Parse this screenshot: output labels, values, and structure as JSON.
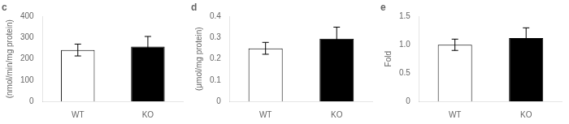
{
  "chart_data": [
    {
      "type": "bar",
      "title": "c",
      "ylabel": "(nmol/min/mg protein)",
      "categories": [
        "WT",
        "KO"
      ],
      "values": [
        242,
        258
      ],
      "errors": [
        28,
        48
      ],
      "colors": [
        "white",
        "black"
      ],
      "ylim": [
        0,
        400
      ],
      "yticks": [
        0,
        100,
        200,
        300,
        400
      ],
      "grid": false
    },
    {
      "type": "bar",
      "title": "d",
      "ylabel": "(μmol/mg protein)",
      "categories": [
        "WT",
        "KO"
      ],
      "values": [
        0.25,
        0.295
      ],
      "errors": [
        0.028,
        0.055
      ],
      "colors": [
        "white",
        "black"
      ],
      "ylim": [
        0,
        0.4
      ],
      "yticks": [
        0,
        0.1,
        0.2,
        0.3,
        0.4
      ],
      "grid": false
    },
    {
      "type": "bar",
      "title": "e",
      "ylabel": "Fold",
      "categories": [
        "WT",
        "KO"
      ],
      "values": [
        1.0,
        1.12
      ],
      "errors": [
        0.1,
        0.18
      ],
      "colors": [
        "white",
        "black"
      ],
      "ylim": [
        0,
        1.5
      ],
      "yticks": [
        0,
        0.5,
        {
          "value": 1,
          "label": "1.0"
        },
        1.5
      ],
      "grid": false
    }
  ]
}
